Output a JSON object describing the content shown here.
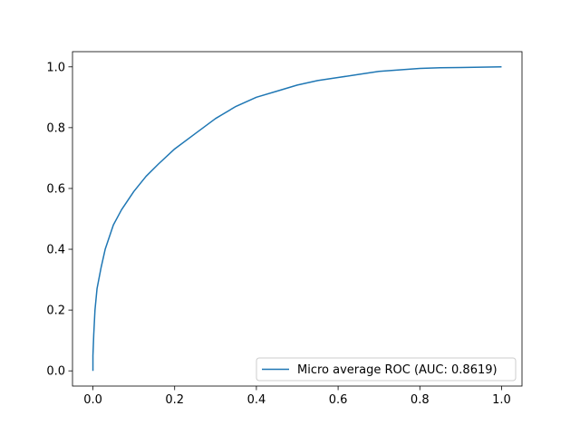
{
  "chart_data": {
    "type": "line",
    "title": "",
    "xlabel": "",
    "ylabel": "",
    "xlim": [
      -0.05,
      1.05
    ],
    "ylim": [
      -0.05,
      1.05
    ],
    "grid": false,
    "legend_position": "lower-right",
    "x_ticks": [
      0.0,
      0.2,
      0.4,
      0.6,
      0.8,
      1.0
    ],
    "x_tick_labels": [
      "0.0",
      "0.2",
      "0.4",
      "0.6",
      "0.8",
      "1.0"
    ],
    "y_ticks": [
      0.0,
      0.2,
      0.4,
      0.6,
      0.8,
      1.0
    ],
    "y_tick_labels": [
      "0.0",
      "0.2",
      "0.4",
      "0.6",
      "0.8",
      "1.0"
    ],
    "series": [
      {
        "name": "Micro average ROC (AUC: 0.8619)",
        "color": "#1f77b4",
        "x": [
          0.0,
          0.0,
          0.002,
          0.005,
          0.01,
          0.02,
          0.03,
          0.04,
          0.05,
          0.07,
          0.1,
          0.13,
          0.16,
          0.2,
          0.25,
          0.3,
          0.35,
          0.4,
          0.45,
          0.5,
          0.55,
          0.6,
          0.65,
          0.7,
          0.75,
          0.8,
          0.85,
          0.9,
          0.95,
          1.0
        ],
        "y": [
          0.0,
          0.05,
          0.12,
          0.2,
          0.27,
          0.34,
          0.4,
          0.44,
          0.48,
          0.53,
          0.59,
          0.64,
          0.68,
          0.73,
          0.78,
          0.83,
          0.87,
          0.9,
          0.92,
          0.94,
          0.955,
          0.965,
          0.975,
          0.985,
          0.99,
          0.995,
          0.997,
          0.998,
          0.999,
          1.0
        ]
      }
    ]
  }
}
